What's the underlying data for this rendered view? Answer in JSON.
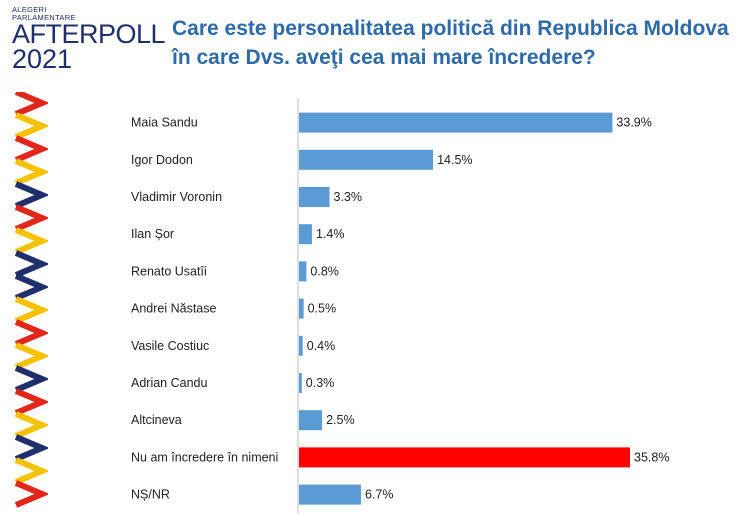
{
  "logo": {
    "line1": "ALEGERI",
    "line2": "PARLAMENTARE",
    "brand_a": "AFTER",
    "brand_b": "POLL",
    "year": "2021",
    "colors": [
      "#e1261c",
      "#f6c200",
      "#1f2f6b"
    ]
  },
  "title": "Care este personalitatea politică din Republica Moldova în care Dvs. aveţi cea mai mare încredere?",
  "chart_data": {
    "type": "bar",
    "orientation": "horizontal",
    "categories": [
      "Maia Sandu",
      "Igor Dodon",
      "Vladimir Voronin",
      "Ilan Șor",
      "Renato Usatîi",
      "Andrei Năstase",
      "Vasile Costiuc",
      "Adrian Candu",
      "Altcineva",
      "Nu am încredere în nimeni",
      "NȘ/NR"
    ],
    "values": [
      33.9,
      14.5,
      3.3,
      1.4,
      0.8,
      0.5,
      0.4,
      0.3,
      2.5,
      35.8,
      6.7
    ],
    "value_labels": [
      "33.9%",
      "14.5%",
      "3.3%",
      "1.4%",
      "0.8%",
      "0.5%",
      "0.4%",
      "0.3%",
      "2.5%",
      "35.8%",
      "6.7%"
    ],
    "bar_color": "#5b9bd5",
    "highlight_color": "#ff0000",
    "highlight_index": 9,
    "xlim": [
      0,
      40
    ],
    "grid": false,
    "legend": "none"
  }
}
